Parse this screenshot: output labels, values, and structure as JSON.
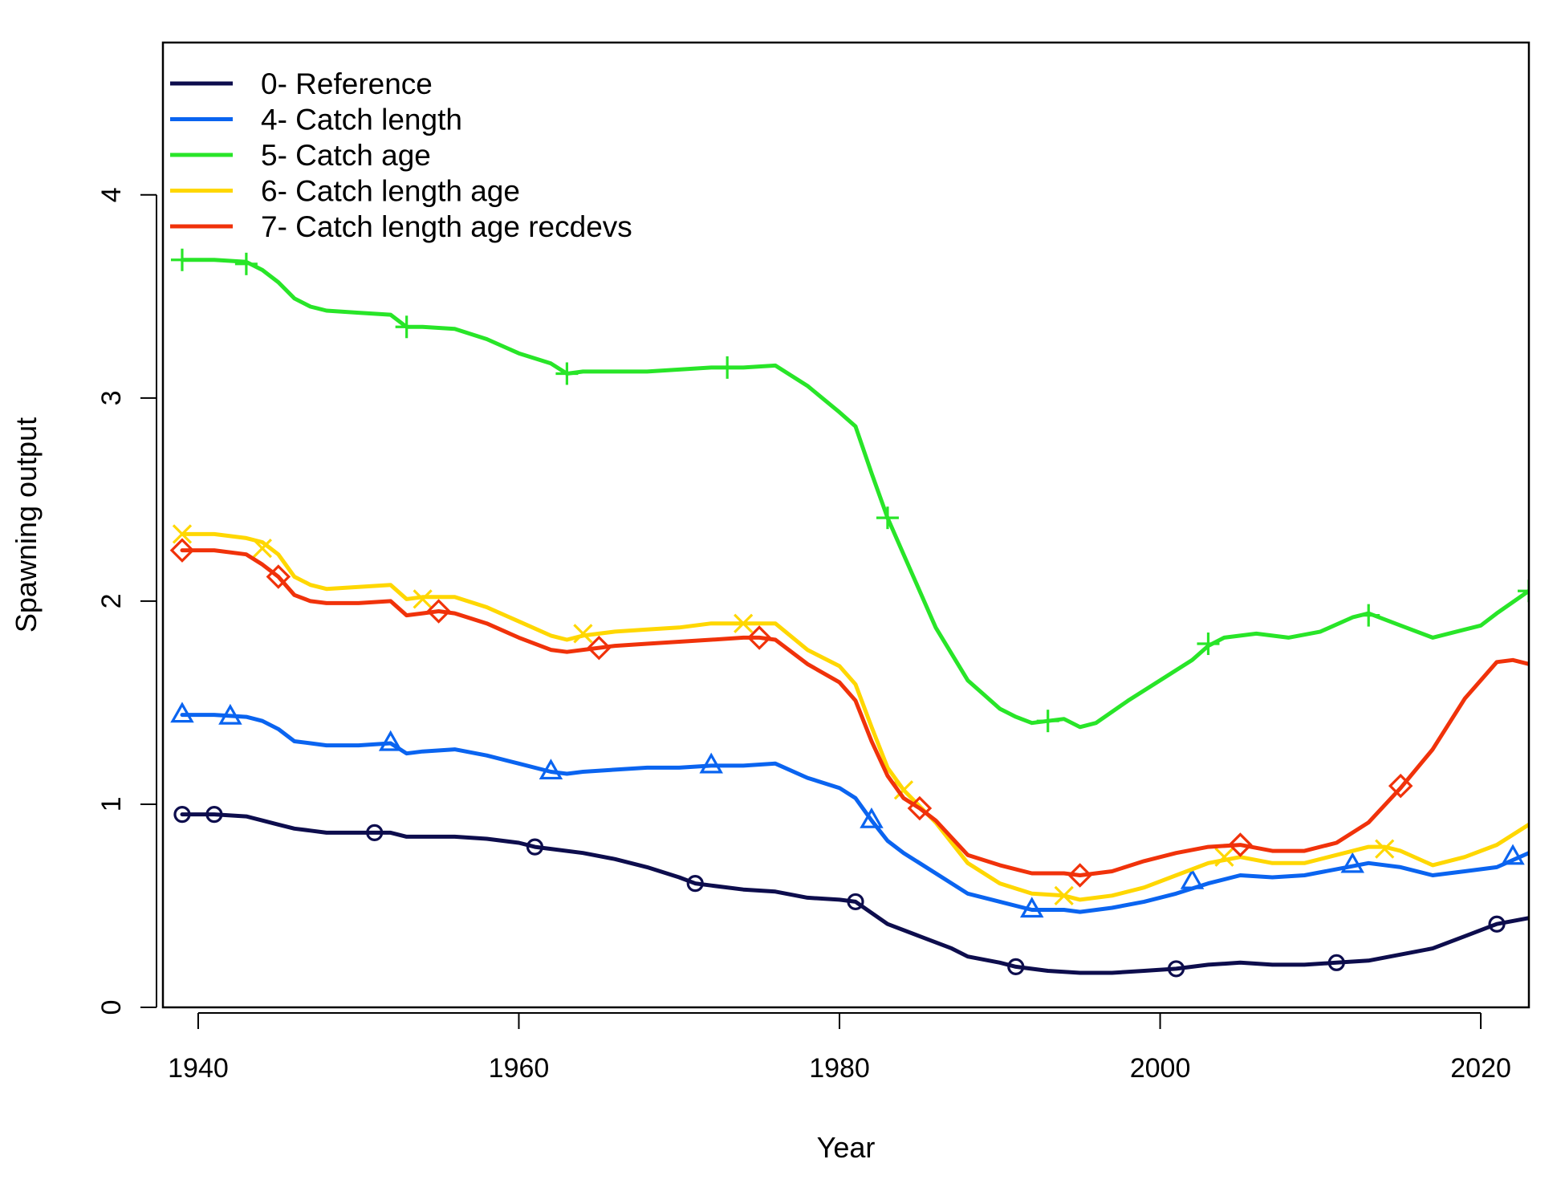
{
  "chart_data": {
    "type": "line",
    "xlabel": "Year",
    "ylabel": "Spawning output",
    "xlim": [
      1937.8,
      2023
    ],
    "ylim": [
      0,
      4.75
    ],
    "x_ticks": [
      1940,
      1960,
      1980,
      2000,
      2020
    ],
    "y_ticks": [
      0,
      1,
      2,
      3,
      4
    ],
    "legend_position": "top-left",
    "grid": false,
    "series": [
      {
        "name": "0- Reference",
        "color": "#0d0d4d",
        "marker": "circle",
        "x": [
          1939,
          1941,
          1943,
          1944,
          1945,
          1946,
          1947,
          1948,
          1950,
          1952,
          1953,
          1954,
          1956,
          1958,
          1960,
          1961,
          1962,
          1964,
          1966,
          1968,
          1970,
          1971,
          1972,
          1974,
          1976,
          1978,
          1980,
          1981,
          1983,
          1985,
          1987,
          1988,
          1990,
          1991,
          1993,
          1995,
          1997,
          1999,
          2001,
          2003,
          2005,
          2007,
          2009,
          2011,
          2013,
          2015,
          2017,
          2019,
          2021,
          2023
        ],
        "y": [
          0.95,
          0.95,
          0.94,
          0.92,
          0.9,
          0.88,
          0.87,
          0.86,
          0.86,
          0.86,
          0.84,
          0.84,
          0.84,
          0.83,
          0.81,
          0.79,
          0.78,
          0.76,
          0.73,
          0.69,
          0.64,
          0.61,
          0.6,
          0.58,
          0.57,
          0.54,
          0.53,
          0.52,
          0.41,
          0.35,
          0.29,
          0.25,
          0.22,
          0.2,
          0.18,
          0.17,
          0.17,
          0.18,
          0.19,
          0.21,
          0.22,
          0.21,
          0.21,
          0.22,
          0.23,
          0.26,
          0.29,
          0.35,
          0.41,
          0.44
        ],
        "marker_x": [
          1939,
          1941,
          1951,
          1961,
          1971,
          1981,
          1991,
          2001,
          2011,
          2021
        ],
        "marker_y": [
          0.95,
          0.95,
          0.86,
          0.79,
          0.61,
          0.52,
          0.2,
          0.19,
          0.22,
          0.41
        ]
      },
      {
        "name": "4- Catch length",
        "color": "#0a64f0",
        "marker": "triangle",
        "x": [
          1939,
          1941,
          1943,
          1944,
          1945,
          1946,
          1947,
          1948,
          1950,
          1952,
          1953,
          1954,
          1956,
          1958,
          1960,
          1962,
          1963,
          1964,
          1966,
          1968,
          1970,
          1972,
          1974,
          1976,
          1978,
          1980,
          1981,
          1982,
          1983,
          1984,
          1986,
          1988,
          1990,
          1992,
          1994,
          1995,
          1997,
          1999,
          2001,
          2003,
          2005,
          2007,
          2009,
          2011,
          2013,
          2015,
          2017,
          2019,
          2021,
          2023
        ],
        "y": [
          1.44,
          1.44,
          1.43,
          1.41,
          1.37,
          1.31,
          1.3,
          1.29,
          1.29,
          1.3,
          1.25,
          1.26,
          1.27,
          1.24,
          1.2,
          1.16,
          1.15,
          1.16,
          1.17,
          1.18,
          1.18,
          1.19,
          1.19,
          1.2,
          1.13,
          1.08,
          1.03,
          0.92,
          0.82,
          0.76,
          0.66,
          0.56,
          0.52,
          0.48,
          0.48,
          0.47,
          0.49,
          0.52,
          0.56,
          0.61,
          0.65,
          0.64,
          0.65,
          0.68,
          0.71,
          0.69,
          0.65,
          0.67,
          0.69,
          0.76
        ],
        "marker_x": [
          1939,
          1942,
          1952,
          1962,
          1972,
          1982,
          1992,
          2002,
          2012,
          2022
        ],
        "marker_y": [
          1.44,
          1.43,
          1.3,
          1.16,
          1.19,
          0.92,
          0.48,
          0.62,
          0.7,
          0.74
        ]
      },
      {
        "name": "5- Catch age",
        "color": "#28e528",
        "marker": "plus",
        "x": [
          1939,
          1941,
          1943,
          1944,
          1945,
          1946,
          1947,
          1948,
          1950,
          1952,
          1953,
          1954,
          1956,
          1958,
          1960,
          1962,
          1963,
          1964,
          1966,
          1968,
          1970,
          1972,
          1974,
          1976,
          1978,
          1980,
          1981,
          1982,
          1983,
          1984,
          1986,
          1988,
          1989,
          1990,
          1991,
          1992,
          1993,
          1994,
          1995,
          1996,
          1998,
          2000,
          2002,
          2003,
          2004,
          2006,
          2008,
          2010,
          2012,
          2013,
          2015,
          2017,
          2019,
          2020,
          2021,
          2023
        ],
        "y": [
          3.68,
          3.68,
          3.67,
          3.63,
          3.57,
          3.49,
          3.45,
          3.43,
          3.42,
          3.41,
          3.35,
          3.35,
          3.34,
          3.29,
          3.22,
          3.17,
          3.12,
          3.13,
          3.13,
          3.13,
          3.14,
          3.15,
          3.15,
          3.16,
          3.06,
          2.93,
          2.86,
          2.63,
          2.41,
          2.23,
          1.87,
          1.61,
          1.54,
          1.47,
          1.43,
          1.4,
          1.41,
          1.42,
          1.38,
          1.4,
          1.51,
          1.61,
          1.71,
          1.78,
          1.82,
          1.84,
          1.82,
          1.85,
          1.92,
          1.94,
          1.88,
          1.82,
          1.86,
          1.88,
          1.94,
          2.05
        ],
        "marker_x": [
          1939,
          1943,
          1953,
          1963,
          1973,
          1983,
          1993,
          2003,
          2013,
          2023
        ],
        "marker_y": [
          3.68,
          3.66,
          3.35,
          3.12,
          3.15,
          2.41,
          1.41,
          1.79,
          1.93,
          2.05
        ]
      },
      {
        "name": "6- Catch length age",
        "color": "#ffd700",
        "marker": "cross",
        "x": [
          1939,
          1941,
          1943,
          1944,
          1945,
          1946,
          1947,
          1948,
          1950,
          1952,
          1953,
          1954,
          1956,
          1958,
          1960,
          1962,
          1963,
          1964,
          1966,
          1968,
          1970,
          1972,
          1974,
          1976,
          1978,
          1980,
          1981,
          1982,
          1983,
          1984,
          1986,
          1988,
          1990,
          1992,
          1994,
          1995,
          1997,
          1999,
          2001,
          2003,
          2005,
          2007,
          2009,
          2011,
          2013,
          2014,
          2015,
          2017,
          2019,
          2021,
          2023
        ],
        "y": [
          2.33,
          2.33,
          2.31,
          2.29,
          2.23,
          2.12,
          2.08,
          2.06,
          2.07,
          2.08,
          2.01,
          2.02,
          2.02,
          1.97,
          1.9,
          1.83,
          1.81,
          1.83,
          1.85,
          1.86,
          1.87,
          1.89,
          1.89,
          1.89,
          1.76,
          1.68,
          1.59,
          1.38,
          1.18,
          1.07,
          0.91,
          0.71,
          0.61,
          0.56,
          0.55,
          0.53,
          0.55,
          0.59,
          0.65,
          0.71,
          0.74,
          0.71,
          0.71,
          0.75,
          0.79,
          0.79,
          0.77,
          0.7,
          0.74,
          0.8,
          0.9
        ],
        "marker_x": [
          1939,
          1944,
          1954,
          1964,
          1974,
          1984,
          1994,
          2004,
          2014
        ],
        "marker_y": [
          2.33,
          2.26,
          2.01,
          1.84,
          1.89,
          1.07,
          0.55,
          0.74,
          0.78
        ]
      },
      {
        "name": "7- Catch length age recdevs",
        "color": "#f0320a",
        "marker": "diamond",
        "x": [
          1939,
          1941,
          1943,
          1944,
          1945,
          1946,
          1947,
          1948,
          1950,
          1952,
          1953,
          1954,
          1955,
          1956,
          1958,
          1960,
          1962,
          1963,
          1964,
          1965,
          1966,
          1968,
          1970,
          1972,
          1974,
          1975,
          1976,
          1978,
          1980,
          1981,
          1982,
          1983,
          1984,
          1985,
          1986,
          1988,
          1990,
          1992,
          1994,
          1995,
          1997,
          1999,
          2001,
          2003,
          2005,
          2007,
          2009,
          2011,
          2013,
          2015,
          2017,
          2019,
          2021,
          2022,
          2023
        ],
        "y": [
          2.25,
          2.25,
          2.23,
          2.18,
          2.12,
          2.03,
          2.0,
          1.99,
          1.99,
          2.0,
          1.93,
          1.94,
          1.95,
          1.94,
          1.89,
          1.82,
          1.76,
          1.75,
          1.76,
          1.77,
          1.78,
          1.79,
          1.8,
          1.81,
          1.82,
          1.82,
          1.81,
          1.69,
          1.6,
          1.51,
          1.31,
          1.14,
          1.03,
          0.98,
          0.92,
          0.75,
          0.7,
          0.66,
          0.66,
          0.65,
          0.67,
          0.72,
          0.76,
          0.79,
          0.8,
          0.77,
          0.77,
          0.81,
          0.91,
          1.08,
          1.27,
          1.52,
          1.7,
          1.71,
          1.69
        ],
        "marker_x": [
          1939,
          1945,
          1955,
          1965,
          1975,
          1985,
          1995,
          2005,
          2015
        ],
        "marker_y": [
          2.25,
          2.12,
          1.95,
          1.77,
          1.82,
          0.98,
          0.65,
          0.8,
          1.09
        ]
      }
    ]
  }
}
